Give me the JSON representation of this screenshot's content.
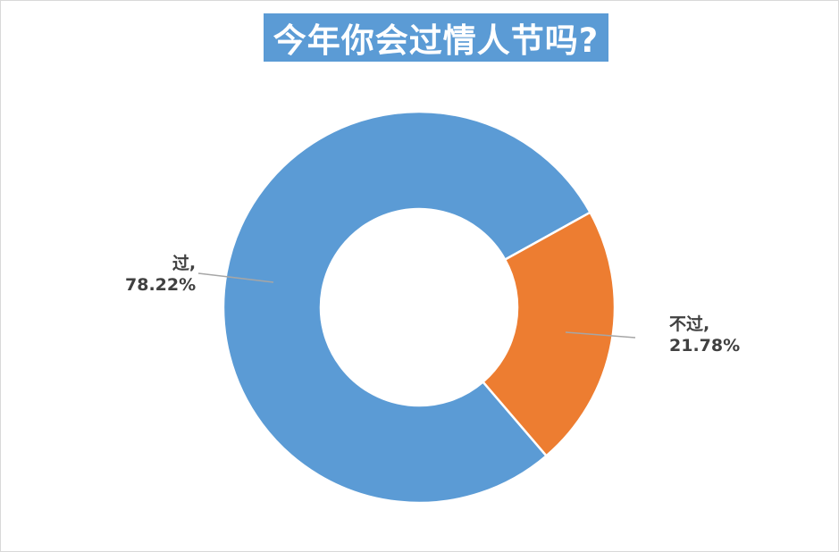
{
  "chart_data": {
    "type": "pie",
    "title": "今年你会过情人节吗?",
    "hole": true,
    "categories": [
      "过",
      "不过"
    ],
    "values": [
      78.22,
      21.78
    ],
    "labels": [
      {
        "category": "过,",
        "percent": "78.22%"
      },
      {
        "category": "不过,",
        "percent": "21.78%"
      }
    ],
    "colors": [
      "#5b9bd5",
      "#ed7d31"
    ],
    "legend": "none"
  }
}
